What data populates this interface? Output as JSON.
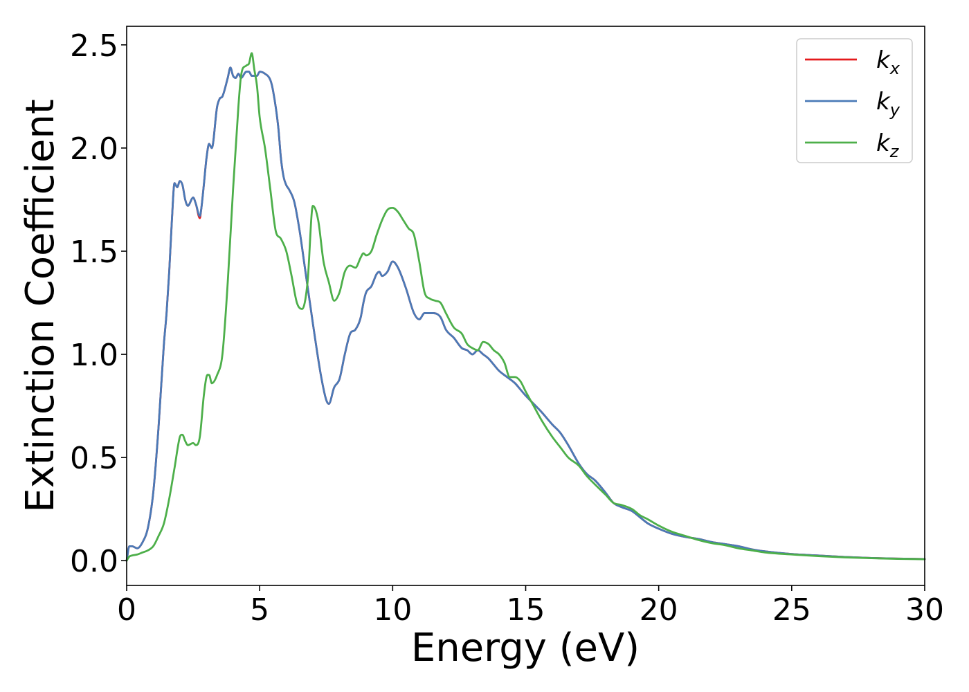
{
  "chart_data": {
    "type": "line",
    "title": "",
    "xlabel": "Energy (eV)",
    "ylabel": "Extinction Coefficient",
    "xlim": [
      0,
      30
    ],
    "ylim": [
      -0.12,
      2.59
    ],
    "xticks": [
      0,
      5,
      10,
      15,
      20,
      25,
      30
    ],
    "xtick_labels": [
      "0",
      "5",
      "10",
      "15",
      "20",
      "25",
      "30"
    ],
    "yticks": [
      0.0,
      0.5,
      1.0,
      1.5,
      2.0,
      2.5
    ],
    "ytick_labels": [
      "0.0",
      "0.5",
      "1.0",
      "1.5",
      "2.0",
      "2.5"
    ],
    "grid": false,
    "legend_position": "top-right",
    "series": [
      {
        "name": "kx",
        "label_main": "k",
        "label_sub": "x",
        "color": "#e41a1c",
        "x": [
          0,
          0.1,
          0.2,
          0.4,
          0.6,
          0.8,
          1.0,
          1.2,
          1.4,
          1.5,
          1.6,
          1.7,
          1.8,
          1.9,
          2.0,
          2.1,
          2.2,
          2.3,
          2.5,
          2.6,
          2.75,
          2.8,
          2.9,
          3.0,
          3.1,
          3.2,
          3.4,
          3.5,
          3.6,
          3.8,
          3.9,
          4.0,
          4.1,
          4.2,
          4.3,
          4.5,
          4.6,
          4.7,
          4.9,
          5.0,
          5.2,
          5.4,
          5.5,
          5.7,
          5.8,
          5.9,
          6.0,
          6.1,
          6.3,
          6.5,
          6.7,
          7.0,
          7.3,
          7.5,
          7.6,
          7.8,
          8.0,
          8.2,
          8.4,
          8.6,
          8.8,
          8.9,
          9.0,
          9.2,
          9.4,
          9.5,
          9.6,
          9.8,
          10.0,
          10.2,
          10.5,
          10.8,
          11.0,
          11.2,
          11.5,
          11.8,
          12.0,
          12.3,
          12.6,
          12.8,
          13.0,
          13.2,
          13.4,
          13.6,
          13.8,
          14.0,
          14.3,
          14.6,
          14.8,
          15.0,
          15.3,
          15.6,
          16.0,
          16.3,
          16.6,
          17.0,
          17.3,
          17.6,
          18.0,
          18.3,
          18.6,
          19.0,
          19.3,
          19.6,
          20.0,
          20.5,
          21.0,
          21.5,
          22.0,
          22.5,
          23.0,
          23.5,
          24.0,
          25.0,
          26.0,
          27.0,
          28.0,
          29.0,
          30.0
        ],
        "y": [
          0.0,
          0.07,
          0.07,
          0.06,
          0.09,
          0.16,
          0.33,
          0.65,
          1.05,
          1.2,
          1.4,
          1.65,
          1.83,
          1.81,
          1.84,
          1.82,
          1.75,
          1.72,
          1.76,
          1.73,
          1.66,
          1.7,
          1.82,
          1.95,
          2.02,
          2.0,
          2.2,
          2.24,
          2.25,
          2.34,
          2.39,
          2.35,
          2.34,
          2.36,
          2.34,
          2.37,
          2.37,
          2.35,
          2.35,
          2.37,
          2.36,
          2.33,
          2.28,
          2.1,
          1.95,
          1.86,
          1.82,
          1.8,
          1.74,
          1.6,
          1.42,
          1.15,
          0.9,
          0.78,
          0.76,
          0.84,
          0.88,
          1.0,
          1.1,
          1.12,
          1.18,
          1.25,
          1.3,
          1.33,
          1.39,
          1.4,
          1.38,
          1.4,
          1.45,
          1.42,
          1.32,
          1.2,
          1.17,
          1.2,
          1.2,
          1.18,
          1.12,
          1.08,
          1.03,
          1.02,
          1.0,
          1.02,
          1.0,
          0.98,
          0.95,
          0.92,
          0.89,
          0.86,
          0.83,
          0.8,
          0.76,
          0.72,
          0.66,
          0.62,
          0.56,
          0.47,
          0.42,
          0.39,
          0.33,
          0.28,
          0.26,
          0.24,
          0.21,
          0.18,
          0.155,
          0.13,
          0.115,
          0.105,
          0.09,
          0.08,
          0.07,
          0.055,
          0.045,
          0.032,
          0.025,
          0.018,
          0.013,
          0.01,
          0.008
        ]
      },
      {
        "name": "ky",
        "label_main": "k",
        "label_sub": "y",
        "color": "#4a7ab7",
        "x": [
          0,
          0.1,
          0.2,
          0.4,
          0.6,
          0.8,
          1.0,
          1.2,
          1.4,
          1.5,
          1.6,
          1.7,
          1.8,
          1.9,
          2.0,
          2.1,
          2.2,
          2.3,
          2.5,
          2.6,
          2.75,
          2.8,
          2.9,
          3.0,
          3.1,
          3.2,
          3.4,
          3.5,
          3.6,
          3.8,
          3.9,
          4.0,
          4.1,
          4.2,
          4.3,
          4.5,
          4.6,
          4.7,
          4.9,
          5.0,
          5.2,
          5.4,
          5.5,
          5.7,
          5.8,
          5.9,
          6.0,
          6.1,
          6.3,
          6.5,
          6.7,
          7.0,
          7.3,
          7.5,
          7.6,
          7.8,
          8.0,
          8.2,
          8.4,
          8.6,
          8.8,
          8.9,
          9.0,
          9.2,
          9.4,
          9.5,
          9.6,
          9.8,
          10.0,
          10.2,
          10.5,
          10.8,
          11.0,
          11.2,
          11.5,
          11.8,
          12.0,
          12.3,
          12.6,
          12.8,
          13.0,
          13.2,
          13.4,
          13.6,
          13.8,
          14.0,
          14.3,
          14.6,
          14.8,
          15.0,
          15.3,
          15.6,
          16.0,
          16.3,
          16.6,
          17.0,
          17.3,
          17.6,
          18.0,
          18.3,
          18.6,
          19.0,
          19.3,
          19.6,
          20.0,
          20.5,
          21.0,
          21.5,
          22.0,
          22.5,
          23.0,
          23.5,
          24.0,
          25.0,
          26.0,
          27.0,
          28.0,
          29.0,
          30.0
        ],
        "y": [
          0.0,
          0.07,
          0.07,
          0.06,
          0.09,
          0.16,
          0.33,
          0.65,
          1.05,
          1.2,
          1.4,
          1.65,
          1.83,
          1.81,
          1.84,
          1.82,
          1.75,
          1.72,
          1.76,
          1.73,
          1.67,
          1.7,
          1.82,
          1.95,
          2.02,
          2.0,
          2.2,
          2.24,
          2.25,
          2.34,
          2.39,
          2.35,
          2.34,
          2.36,
          2.34,
          2.37,
          2.37,
          2.35,
          2.35,
          2.37,
          2.36,
          2.33,
          2.28,
          2.1,
          1.95,
          1.86,
          1.82,
          1.8,
          1.74,
          1.6,
          1.42,
          1.15,
          0.9,
          0.78,
          0.76,
          0.84,
          0.88,
          1.0,
          1.1,
          1.12,
          1.18,
          1.25,
          1.3,
          1.33,
          1.39,
          1.4,
          1.38,
          1.4,
          1.45,
          1.42,
          1.32,
          1.2,
          1.17,
          1.2,
          1.2,
          1.18,
          1.12,
          1.08,
          1.03,
          1.02,
          1.0,
          1.02,
          1.0,
          0.98,
          0.95,
          0.92,
          0.89,
          0.86,
          0.83,
          0.8,
          0.76,
          0.72,
          0.66,
          0.62,
          0.56,
          0.47,
          0.42,
          0.39,
          0.33,
          0.28,
          0.26,
          0.24,
          0.21,
          0.18,
          0.155,
          0.13,
          0.115,
          0.105,
          0.09,
          0.08,
          0.07,
          0.055,
          0.045,
          0.032,
          0.025,
          0.018,
          0.013,
          0.01,
          0.008
        ]
      },
      {
        "name": "kz",
        "label_main": "k",
        "label_sub": "z",
        "color": "#4daf4a",
        "x": [
          0,
          0.1,
          0.2,
          0.4,
          0.6,
          0.8,
          1.0,
          1.2,
          1.4,
          1.6,
          1.8,
          2.0,
          2.1,
          2.2,
          2.3,
          2.5,
          2.6,
          2.75,
          2.9,
          3.0,
          3.1,
          3.2,
          3.4,
          3.6,
          3.8,
          4.0,
          4.2,
          4.3,
          4.5,
          4.6,
          4.7,
          4.8,
          4.9,
          5.0,
          5.2,
          5.4,
          5.6,
          5.8,
          6.0,
          6.2,
          6.4,
          6.6,
          6.8,
          7.0,
          7.2,
          7.4,
          7.6,
          7.8,
          8.0,
          8.2,
          8.4,
          8.6,
          8.8,
          8.9,
          9.0,
          9.2,
          9.4,
          9.6,
          9.8,
          10.0,
          10.2,
          10.4,
          10.6,
          10.8,
          11.0,
          11.2,
          11.4,
          11.6,
          11.8,
          12.0,
          12.3,
          12.6,
          12.8,
          13.0,
          13.2,
          13.4,
          13.6,
          13.8,
          14.0,
          14.2,
          14.4,
          14.6,
          14.8,
          15.0,
          15.3,
          15.6,
          16.0,
          16.3,
          16.6,
          17.0,
          17.3,
          17.6,
          18.0,
          18.3,
          18.6,
          19.0,
          19.3,
          19.6,
          20.0,
          20.5,
          21.0,
          21.5,
          22.0,
          22.5,
          23.0,
          23.5,
          24.0,
          25.0,
          26.0,
          27.0,
          28.0,
          29.0,
          30.0
        ],
        "y": [
          0.0,
          0.02,
          0.025,
          0.03,
          0.04,
          0.05,
          0.07,
          0.12,
          0.18,
          0.3,
          0.45,
          0.6,
          0.61,
          0.58,
          0.56,
          0.57,
          0.56,
          0.6,
          0.8,
          0.89,
          0.9,
          0.86,
          0.9,
          1.0,
          1.35,
          1.8,
          2.2,
          2.35,
          2.4,
          2.41,
          2.46,
          2.38,
          2.3,
          2.15,
          2.0,
          1.8,
          1.6,
          1.56,
          1.5,
          1.38,
          1.25,
          1.22,
          1.35,
          1.72,
          1.65,
          1.45,
          1.35,
          1.26,
          1.3,
          1.4,
          1.43,
          1.42,
          1.47,
          1.49,
          1.48,
          1.5,
          1.58,
          1.65,
          1.7,
          1.71,
          1.69,
          1.65,
          1.61,
          1.58,
          1.45,
          1.3,
          1.27,
          1.26,
          1.25,
          1.2,
          1.13,
          1.1,
          1.05,
          1.03,
          1.02,
          1.06,
          1.05,
          1.02,
          1.0,
          0.96,
          0.89,
          0.89,
          0.87,
          0.82,
          0.75,
          0.68,
          0.6,
          0.55,
          0.5,
          0.46,
          0.41,
          0.37,
          0.32,
          0.28,
          0.27,
          0.25,
          0.22,
          0.2,
          0.17,
          0.14,
          0.12,
          0.1,
          0.085,
          0.075,
          0.06,
          0.05,
          0.04,
          0.03,
          0.022,
          0.016,
          0.012,
          0.009,
          0.007
        ]
      }
    ]
  }
}
